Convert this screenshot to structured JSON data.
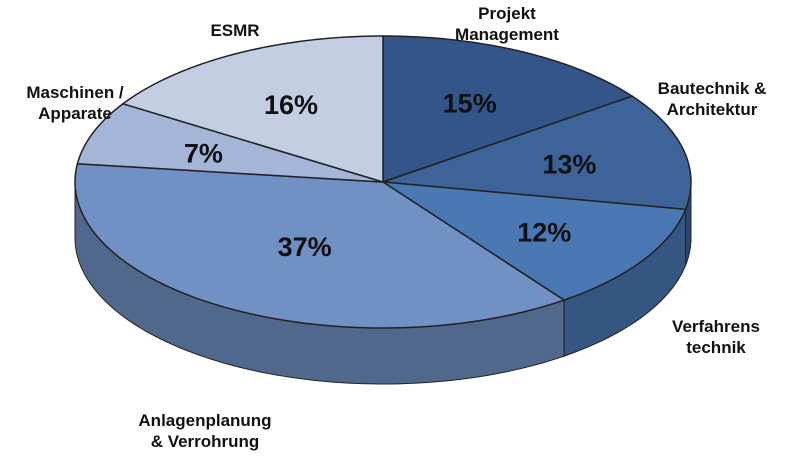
{
  "chart_data": {
    "type": "pie",
    "categories": [
      "Projekt Management",
      "Bautechnik & Architektur",
      "Verfahrens technik",
      "Anlagenplanung & Verrohrung",
      "Maschinen / Apparate",
      "ESMR"
    ],
    "values": [
      15,
      13,
      12,
      37,
      7,
      16
    ],
    "value_labels": [
      "15%",
      "13%",
      "12%",
      "37%",
      "7%",
      "16%"
    ],
    "colors": [
      "#34558a",
      "#3d6399",
      "#4a78b3",
      "#7190c4",
      "#a4b5d7",
      "#c3cee3"
    ]
  }
}
